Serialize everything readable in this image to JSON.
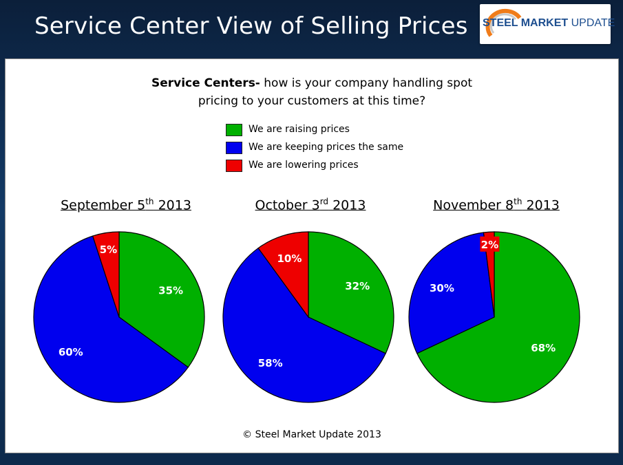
{
  "slide": {
    "title": "Service Center View of Selling Prices",
    "logo_bold": "STEEL MARKET",
    "logo_light": "UPDATE",
    "question_bold": "Service Centers-",
    "question_line1": " how is your company handling spot",
    "question_line2": "pricing to your customers at this time?",
    "footer": "© Steel Market Update 2013"
  },
  "colors": {
    "raising": "#00b000",
    "same": "#0000ee",
    "lowering": "#ee0000"
  },
  "chart_data": [
    {
      "type": "pie",
      "title_main": "September 5",
      "title_sup": "th",
      "title_year": " 2013",
      "slices": [
        {
          "label": "We are raising prices",
          "value": 35,
          "text": "35%"
        },
        {
          "label": "We are keeping prices the same",
          "value": 60,
          "text": "60%"
        },
        {
          "label": "We are lowering prices",
          "value": 5,
          "text": "5%"
        }
      ]
    },
    {
      "type": "pie",
      "title_main": "October 3",
      "title_sup": "rd",
      "title_year": " 2013",
      "slices": [
        {
          "label": "We are raising prices",
          "value": 32,
          "text": "32%"
        },
        {
          "label": "We are keeping prices the same",
          "value": 58,
          "text": "58%"
        },
        {
          "label": "We are lowering prices",
          "value": 10,
          "text": "10%"
        }
      ]
    },
    {
      "type": "pie",
      "title_main": "November 8",
      "title_sup": "th",
      "title_year": " 2013",
      "slices": [
        {
          "label": "We are raising prices",
          "value": 68,
          "text": "68%"
        },
        {
          "label": "We are keeping prices the same",
          "value": 30,
          "text": "30%"
        },
        {
          "label": "We are lowering prices",
          "value": 2,
          "text": "2%"
        }
      ]
    }
  ],
  "legend": [
    {
      "label": "We are raising prices",
      "color": "#00b000"
    },
    {
      "label": "We are keeping prices the same",
      "color": "#0000ee"
    },
    {
      "label": "We are lowering prices",
      "color": "#ee0000"
    }
  ]
}
